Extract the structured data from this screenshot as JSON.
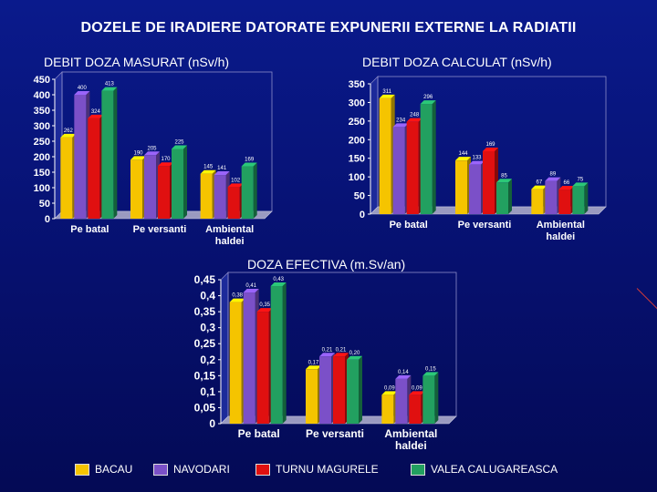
{
  "title": "DOZELE DE IRADIERE DATORATE EXPUNERII EXTERNE LA RADIATII",
  "colors": {
    "BACAU": "#f5c400",
    "NAVODARI": "#7b50c8",
    "TURNU MAGURELE": "#e01010",
    "VALEA CALUGAREASCA": "#22a060"
  },
  "chart_data": [
    {
      "type": "bar",
      "title": "DEBIT DOZA MASURAT (nSv/h)",
      "categories": [
        "Pe batal",
        "Pe versanti",
        "Ambiental haldei"
      ],
      "yticks": [
        "0",
        "50",
        "100",
        "150",
        "200",
        "250",
        "300",
        "350",
        "400",
        "450"
      ],
      "ylim": [
        0,
        450
      ],
      "series": [
        {
          "name": "BACAU",
          "values": [
            262,
            190,
            145
          ],
          "labels": [
            "262",
            "190",
            "145"
          ]
        },
        {
          "name": "NAVODARI",
          "values": [
            400,
            205,
            141
          ],
          "labels": [
            "400",
            "205",
            "141"
          ]
        },
        {
          "name": "TURNU MAGURELE",
          "values": [
            324,
            170,
            102
          ],
          "labels": [
            "324",
            "170",
            "102"
          ]
        },
        {
          "name": "VALEA CALUGAREASCA",
          "values": [
            413,
            225,
            169
          ],
          "labels": [
            "413",
            "225",
            "169"
          ]
        }
      ]
    },
    {
      "type": "bar",
      "title": "DEBIT DOZA CALCULAT (nSv/h)",
      "categories": [
        "Pe batal",
        "Pe versanti",
        "Ambiental haldei"
      ],
      "yticks": [
        "0",
        "50",
        "100",
        "150",
        "200",
        "250",
        "300",
        "350"
      ],
      "ylim": [
        0,
        350
      ],
      "series": [
        {
          "name": "BACAU",
          "values": [
            311,
            144,
            67
          ],
          "labels": [
            "311",
            "144",
            "67"
          ]
        },
        {
          "name": "NAVODARI",
          "values": [
            234,
            133,
            89
          ],
          "labels": [
            "234",
            "133",
            "89"
          ]
        },
        {
          "name": "TURNU MAGURELE",
          "values": [
            248,
            169,
            66
          ],
          "labels": [
            "248",
            "169",
            "66"
          ]
        },
        {
          "name": "VALEA CALUGAREASCA",
          "values": [
            296,
            85,
            75
          ],
          "labels": [
            "296",
            "85",
            "75"
          ]
        }
      ]
    },
    {
      "type": "bar",
      "title": "DOZA EFECTIVA (m.Sv/an)",
      "categories": [
        "Pe batal",
        "Pe versanti",
        "Ambiental haldei"
      ],
      "yticks": [
        "0",
        "0,05",
        "0,1",
        "0,15",
        "0,2",
        "0,25",
        "0,3",
        "0,35",
        "0,4",
        "0,45"
      ],
      "ylim": [
        0,
        0.45
      ],
      "series": [
        {
          "name": "BACAU",
          "values": [
            0.38,
            0.17,
            0.09
          ],
          "labels": [
            "0,38",
            "0,17",
            "0,09"
          ]
        },
        {
          "name": "NAVODARI",
          "values": [
            0.41,
            0.21,
            0.14
          ],
          "labels": [
            "0,41",
            "0,21",
            "0,14"
          ]
        },
        {
          "name": "TURNU MAGURELE",
          "values": [
            0.35,
            0.21,
            0.09
          ],
          "labels": [
            "0,35",
            "0,21",
            "0,09"
          ]
        },
        {
          "name": "VALEA CALUGAREASCA",
          "values": [
            0.43,
            0.2,
            0.15
          ],
          "labels": [
            "0,43",
            "0,20",
            "0,15"
          ]
        }
      ]
    }
  ],
  "legend": [
    "BACAU",
    "NAVODARI",
    "TURNU MAGURELE",
    "VALEA CALUGAREASCA"
  ]
}
